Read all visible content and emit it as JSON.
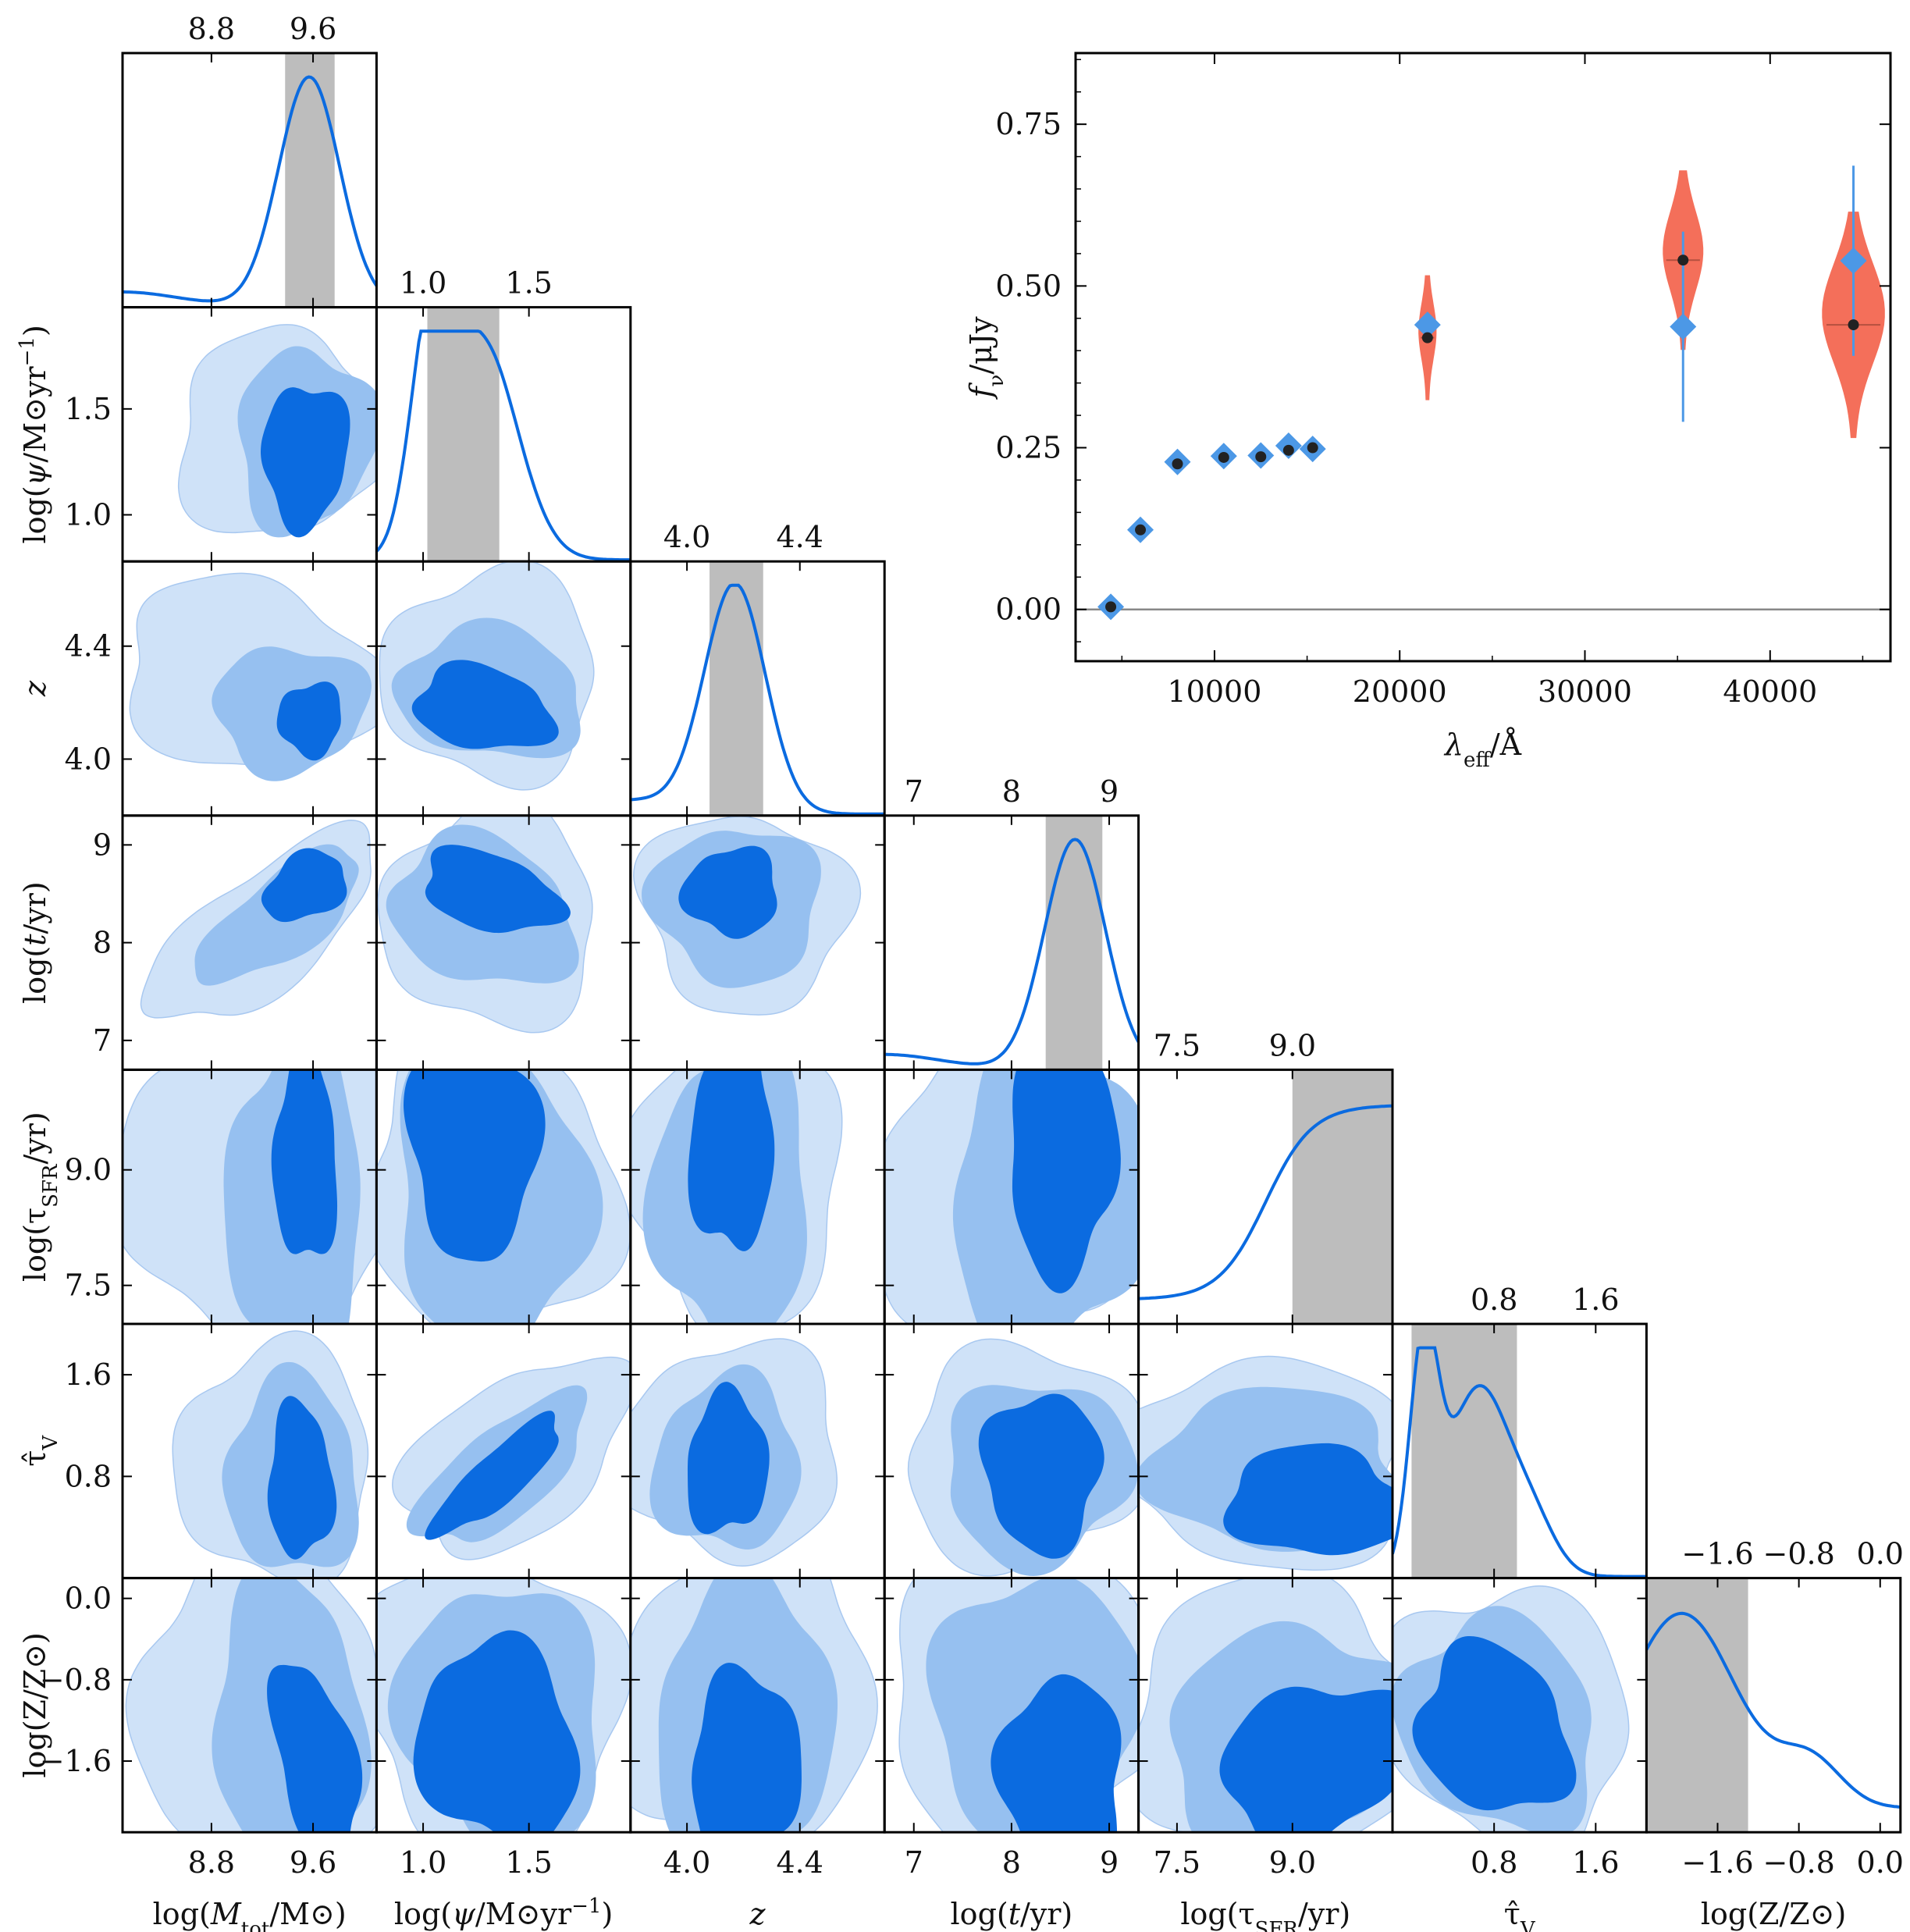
{
  "colors": {
    "shade": "#bdbdbd",
    "curve": "#0b6be0",
    "c1": "#cfe2f8",
    "c2": "#96c0f0",
    "c3": "#0b6be0",
    "diamond": "#4c98e6",
    "violin": "#f46f5a",
    "dot": "#222222"
  },
  "chart_data": [
    {
      "type": "corner",
      "parameters": [
        {
          "key": "mtot",
          "xlabel": "log(M_tot/M⊙)",
          "ylabel": "",
          "range": [
            8.1,
            10.1
          ],
          "ticks": [
            8.8,
            9.6
          ],
          "tick_labels": [
            "8.8",
            "9.6"
          ],
          "interval": [
            9.38,
            9.77
          ],
          "peak": 9.57
        },
        {
          "key": "sfr",
          "xlabel": "log(ψ/M⊙yr⁻¹)",
          "ylabel": "log(ψ/M⊙yr⁻¹)",
          "range": [
            0.78,
            1.98
          ],
          "ticks": [
            1.0,
            1.5
          ],
          "tick_labels": [
            "1.0",
            "1.5"
          ],
          "interval": [
            1.02,
            1.36
          ],
          "peak": 1.24
        },
        {
          "key": "z",
          "xlabel": "z",
          "ylabel": "z",
          "range": [
            3.8,
            4.7
          ],
          "ticks": [
            4.0,
            4.4
          ],
          "tick_labels": [
            "4.0",
            "4.4"
          ],
          "interval": [
            4.08,
            4.27
          ],
          "peak": 4.17
        },
        {
          "key": "age",
          "xlabel": "log(t/yr)",
          "ylabel": "log(t/yr)",
          "range": [
            6.7,
            9.3
          ],
          "ticks": [
            7,
            8,
            9
          ],
          "tick_labels": [
            "7",
            "8",
            "9"
          ],
          "interval": [
            8.35,
            8.93
          ],
          "peak": 8.65
        },
        {
          "key": "tau",
          "xlabel": "log(τ_SFR/yr)",
          "ylabel": "log(τ_SFR/yr)",
          "range": [
            7.0,
            10.3
          ],
          "ticks": [
            7.5,
            9.0
          ],
          "tick_labels": [
            "7.5",
            "9.0"
          ],
          "interval": [
            9.0,
            10.3
          ],
          "peak": 10.0
        },
        {
          "key": "tauv",
          "xlabel": "τ̂_V",
          "ylabel": "τ̂_V",
          "range": [
            0.0,
            2.0
          ],
          "ticks": [
            0.8,
            1.6
          ],
          "tick_labels": [
            "0.8",
            "1.6"
          ],
          "interval": [
            0.15,
            0.98
          ],
          "peak": 0.25
        },
        {
          "key": "metal",
          "xlabel": "log(Z/Z⊙)",
          "ylabel": "log(Z/Z⊙)",
          "range": [
            -2.3,
            0.2
          ],
          "ticks": [
            -1.6,
            -0.8,
            0.0
          ],
          "tick_labels": [
            "−1.6",
            "−0.8",
            "0.0"
          ],
          "interval": [
            -2.3,
            -1.3
          ],
          "peak": -2.0
        }
      ],
      "contour_levels": [
        "outer",
        "middle",
        "inner"
      ]
    },
    {
      "type": "scatter",
      "title": "",
      "xlabel": "λ_eff/Å",
      "ylabel": "f_ν/μJy",
      "xlim": [
        2500,
        46500
      ],
      "ylim": [
        -0.08,
        0.86
      ],
      "xticks": [
        10000,
        20000,
        30000,
        40000
      ],
      "xtick_labels": [
        "10000",
        "20000",
        "30000",
        "40000"
      ],
      "yticks": [
        0.0,
        0.25,
        0.5,
        0.75
      ],
      "ytick_labels": [
        "0.00",
        "0.25",
        "0.50",
        "0.75"
      ],
      "zero_line": 0.0,
      "observed": [
        {
          "x": 4400,
          "y": 0.004,
          "err": 0.0
        },
        {
          "x": 6000,
          "y": 0.123,
          "err": 0.0
        },
        {
          "x": 8000,
          "y": 0.228,
          "err": 0.0
        },
        {
          "x": 10500,
          "y": 0.237,
          "err": 0.0
        },
        {
          "x": 12500,
          "y": 0.238,
          "err": 0.0
        },
        {
          "x": 14000,
          "y": 0.253,
          "err": 0.0
        },
        {
          "x": 15300,
          "y": 0.248,
          "err": 0.0
        },
        {
          "x": 21500,
          "y": 0.44,
          "err": 0.0
        },
        {
          "x": 35300,
          "y": 0.437,
          "err": 0.147
        },
        {
          "x": 44500,
          "y": 0.539,
          "err": 0.147
        }
      ],
      "model": [
        {
          "x": 4400,
          "y": 0.004,
          "width": 0
        },
        {
          "x": 6000,
          "y": 0.123,
          "width": 0
        },
        {
          "x": 8000,
          "y": 0.225,
          "width": 0
        },
        {
          "x": 10500,
          "y": 0.235,
          "width": 0
        },
        {
          "x": 12500,
          "y": 0.236,
          "width": 0
        },
        {
          "x": 14000,
          "y": 0.246,
          "width": 0
        },
        {
          "x": 15300,
          "y": 0.25,
          "width": 0
        },
        {
          "x": 21500,
          "y": 0.42,
          "width": 0.4
        },
        {
          "x": 35300,
          "y": 0.54,
          "width": 1.0
        },
        {
          "x": 44500,
          "y": 0.44,
          "width": 1.6
        }
      ]
    }
  ]
}
